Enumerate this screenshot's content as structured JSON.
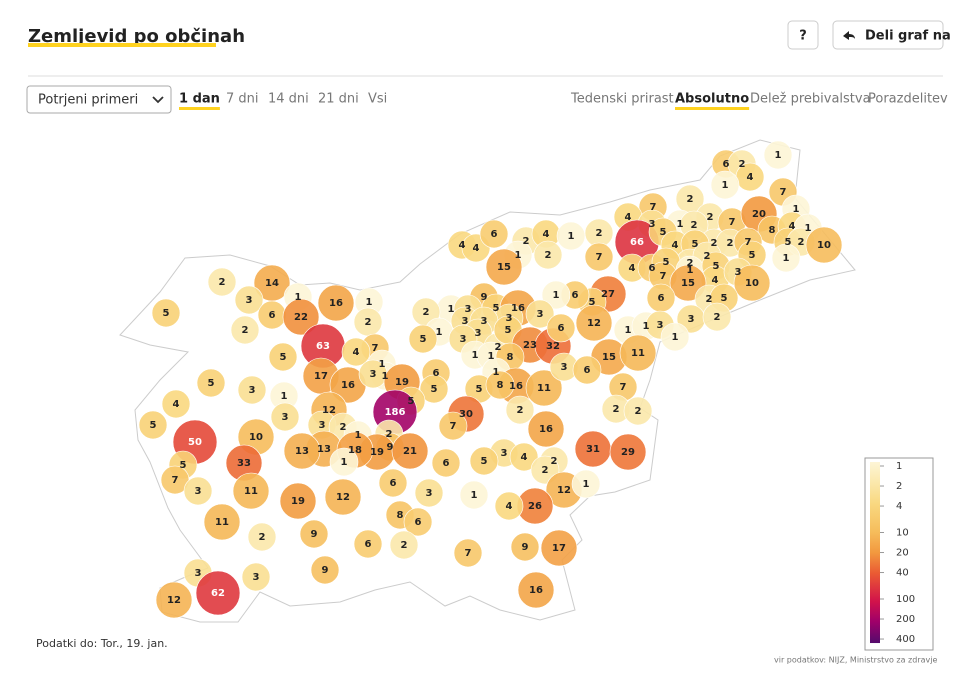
{
  "header": {
    "title": "Zemljevid po občinah",
    "help": "?",
    "share": "Deli graf na"
  },
  "controls": {
    "select": "Potrjeni primeri",
    "periods": [
      "1 dan",
      "7 dni",
      "14 dni",
      "21 dni",
      "Vsi"
    ],
    "active_period": 0,
    "measures": [
      "Tedenski prirast",
      "Absolutno",
      "Delež prebivalstva",
      "Porazdelitev"
    ],
    "active_measure": 1
  },
  "map": {
    "values": [
      6,
      2,
      1,
      4,
      1,
      7,
      2,
      7,
      4,
      2,
      7,
      20,
      1,
      8,
      4,
      1,
      1,
      3,
      2,
      2,
      2,
      7,
      5,
      2,
      10,
      4,
      4,
      6,
      2,
      4,
      1,
      2,
      66,
      5,
      4,
      5,
      2,
      2,
      5,
      1,
      2,
      1,
      15,
      7,
      4,
      6,
      5,
      7,
      1,
      5,
      4,
      3,
      15,
      10,
      6,
      2,
      5,
      27,
      5,
      6,
      1,
      9,
      1,
      3,
      5,
      16,
      3,
      3,
      2,
      14,
      3,
      1,
      16,
      1,
      6,
      22,
      5,
      2,
      2,
      2,
      1,
      3,
      3,
      3,
      2,
      5,
      23,
      32,
      6,
      12,
      1,
      1,
      3,
      3,
      2,
      1,
      3,
      5,
      63,
      7,
      4,
      5,
      1,
      1,
      8,
      15,
      11,
      17,
      5,
      3,
      1,
      16,
      1,
      1,
      3,
      19,
      6,
      1,
      16,
      11,
      3,
      6,
      7,
      5,
      5,
      8,
      5,
      4,
      3,
      12,
      186,
      30,
      2,
      2,
      2,
      5,
      3,
      2,
      1,
      2,
      7,
      16,
      10,
      50,
      13,
      13,
      9,
      19,
      18,
      21,
      31,
      29,
      3,
      5,
      4,
      6,
      2,
      33,
      5,
      1,
      7,
      2,
      6,
      11,
      3,
      12,
      19,
      3,
      1,
      12,
      1,
      26,
      4,
      11,
      8,
      6,
      2,
      9,
      6,
      2,
      7,
      9,
      17,
      3,
      3,
      9,
      62,
      12,
      16
    ],
    "legend": {
      "ticks": [
        1,
        2,
        4,
        10,
        20,
        40,
        100,
        200,
        400
      ],
      "colors": [
        "#fdf5d6",
        "#fbe8ab",
        "#f9d880",
        "#f6bd5c",
        "#f2993f",
        "#ea5a33",
        "#d2134a",
        "#9e006a",
        "#540b6c"
      ]
    }
  },
  "footer": {
    "updated": "Podatki do: Tor., 19. jan.",
    "source": "vir podatkov: NIJZ, Ministrstvo za zdravje"
  }
}
